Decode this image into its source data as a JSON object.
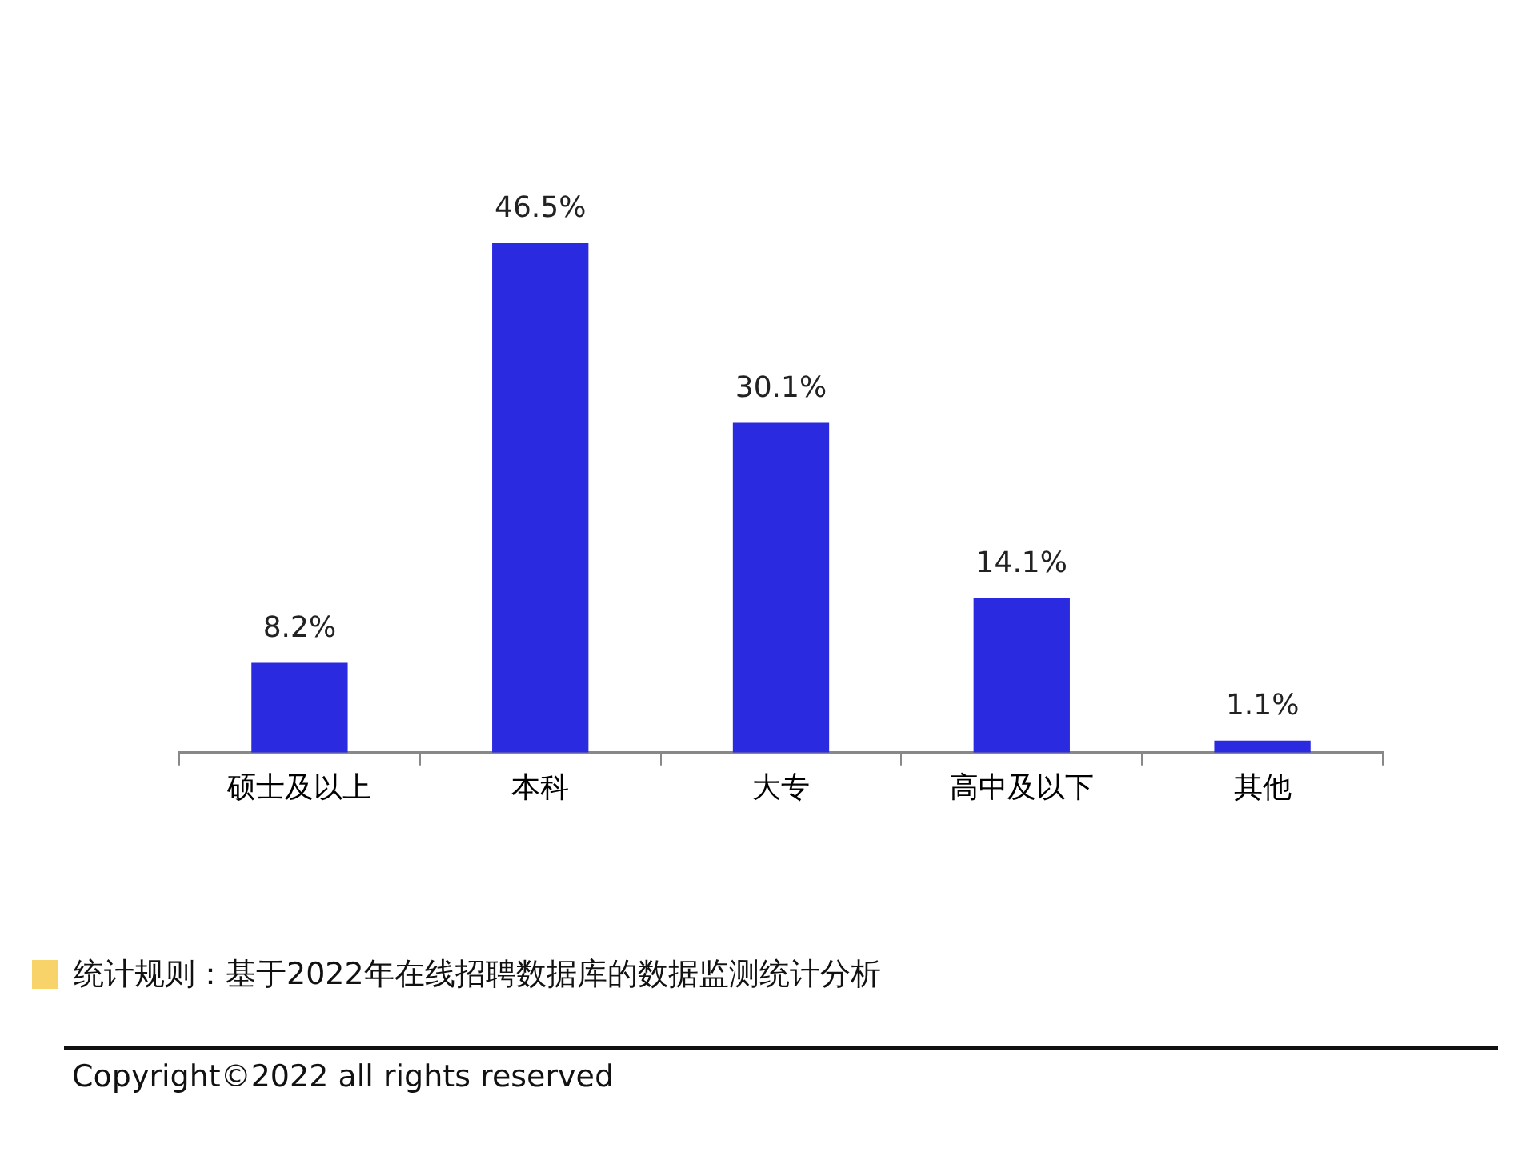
{
  "chart_data": {
    "type": "bar",
    "categories": [
      "硕士及以上",
      "本科",
      "大专",
      "高中及以下",
      "其他"
    ],
    "values": [
      8.2,
      46.5,
      30.1,
      14.1,
      1.1
    ],
    "color": "#2a2ae0",
    "data_labels": true,
    "value_labels": [
      "8.2%",
      "46.5%",
      "30.1%",
      "14.1%",
      "1.1%"
    ],
    "tick_labels": "x",
    "annotations": [
      "统计规则：基于2022年在线招聘数据库的数据监测统计分析",
      "Copyright©2022 all rights reserved"
    ]
  }
}
